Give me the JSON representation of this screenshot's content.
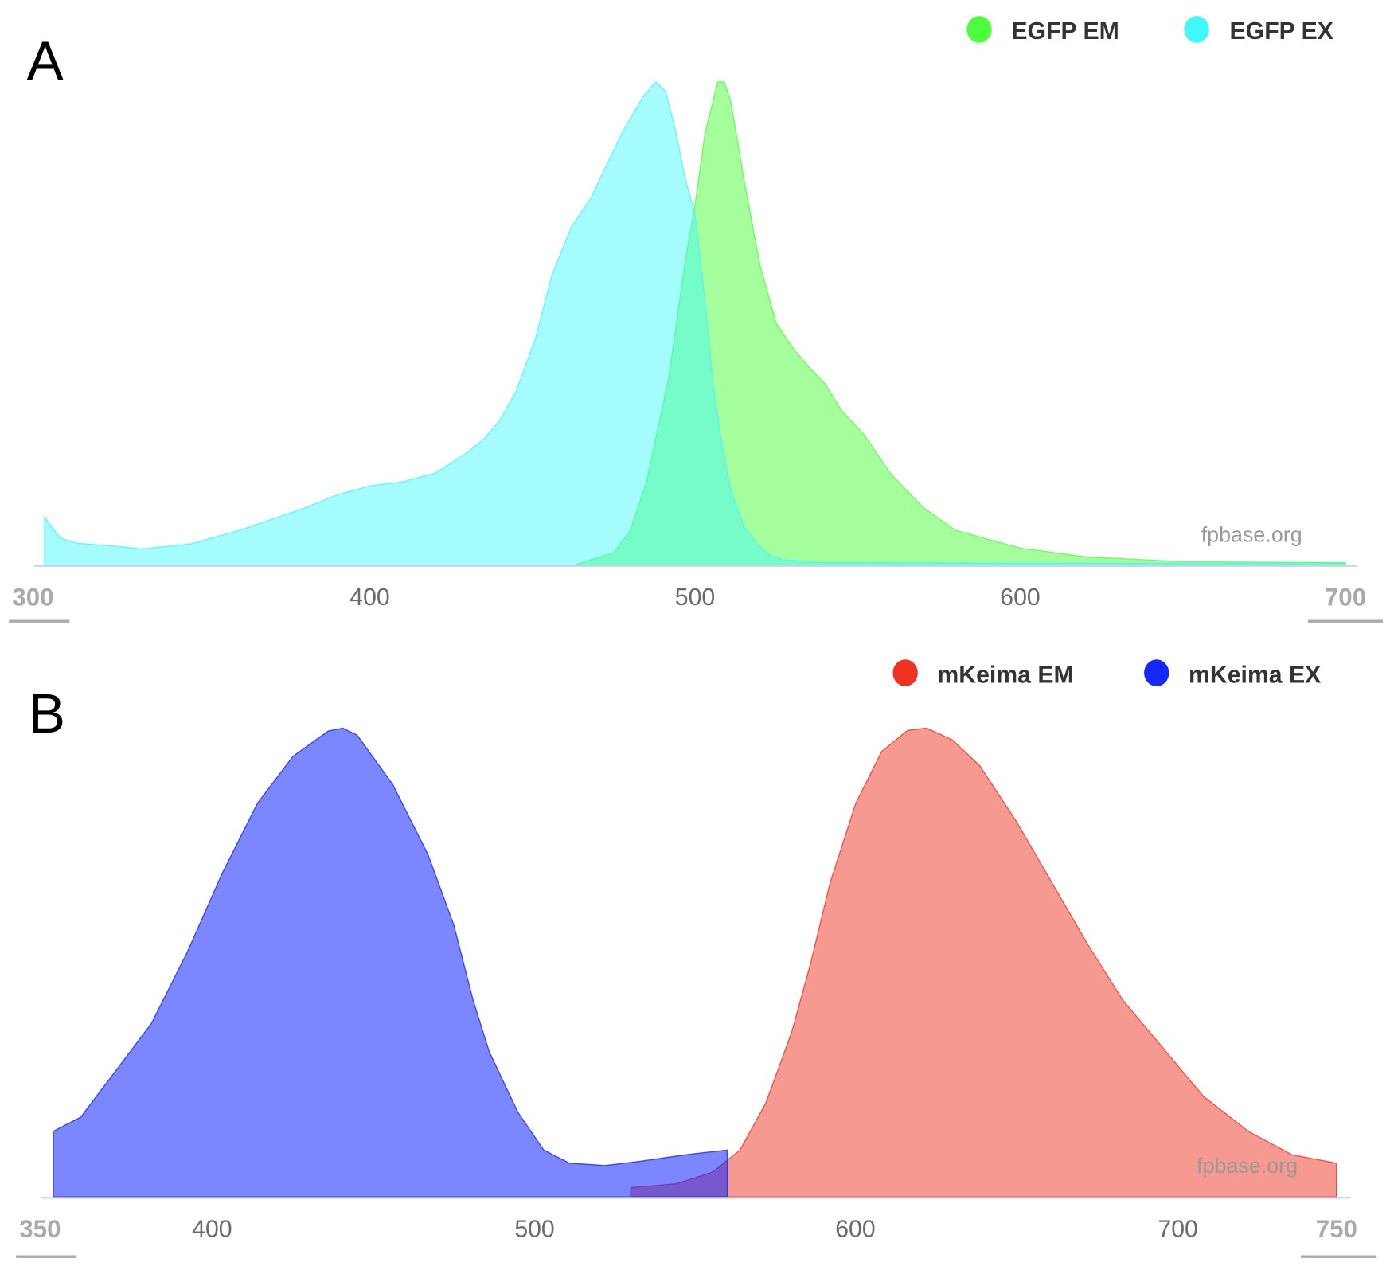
{
  "chart_data": [
    {
      "type": "area",
      "panel_label": "A",
      "xlabel": "",
      "ylabel": "",
      "xlim": [
        300,
        700
      ],
      "ylim": [
        0,
        1
      ],
      "x_ticks": [
        "300",
        "400",
        "500",
        "600",
        "700"
      ],
      "legend_placement": "top-right",
      "watermark": "fpbase.org",
      "series": [
        {
          "name": "EGFP EM",
          "color": "#4cff3a",
          "points": [
            [
              463,
              0
            ],
            [
              475,
              0.026
            ],
            [
              480,
              0.07
            ],
            [
              485,
              0.17
            ],
            [
              492,
              0.39
            ],
            [
              497,
              0.63
            ],
            [
              500,
              0.745
            ],
            [
              503,
              0.89
            ],
            [
              507,
              1.0
            ],
            [
              509,
              1.0
            ],
            [
              511,
              0.96
            ],
            [
              515,
              0.8
            ],
            [
              520,
              0.62
            ],
            [
              525,
              0.5
            ],
            [
              530,
              0.45
            ],
            [
              535,
              0.41
            ],
            [
              540,
              0.375
            ],
            [
              545,
              0.32
            ],
            [
              552,
              0.27
            ],
            [
              560,
              0.19
            ],
            [
              570,
              0.12
            ],
            [
              580,
              0.072
            ],
            [
              600,
              0.035
            ],
            [
              620,
              0.017
            ],
            [
              650,
              0.007
            ],
            [
              700,
              0.005
            ]
          ]
        },
        {
          "name": "EGFP EX",
          "color": "#40f8f8",
          "points": [
            [
              300,
              0.1
            ],
            [
              302,
              0.08
            ],
            [
              305,
              0.055
            ],
            [
              310,
              0.045
            ],
            [
              320,
              0.04
            ],
            [
              330,
              0.033
            ],
            [
              345,
              0.044
            ],
            [
              360,
              0.072
            ],
            [
              370,
              0.095
            ],
            [
              380,
              0.118
            ],
            [
              390,
              0.145
            ],
            [
              400,
              0.164
            ],
            [
              410,
              0.172
            ],
            [
              420,
              0.19
            ],
            [
              429,
              0.228
            ],
            [
              435,
              0.26
            ],
            [
              440,
              0.3
            ],
            [
              445,
              0.36
            ],
            [
              451,
              0.47
            ],
            [
              456,
              0.6
            ],
            [
              462,
              0.7
            ],
            [
              468,
              0.76
            ],
            [
              473,
              0.83
            ],
            [
              478,
              0.9
            ],
            [
              484,
              0.97
            ],
            [
              488,
              1.0
            ],
            [
              491,
              0.98
            ],
            [
              494,
              0.9
            ],
            [
              497,
              0.8
            ],
            [
              500,
              0.727
            ],
            [
              503,
              0.55
            ],
            [
              505.5,
              0.376
            ],
            [
              508,
              0.26
            ],
            [
              511,
              0.155
            ],
            [
              515,
              0.08
            ],
            [
              519,
              0.044
            ],
            [
              523,
              0.02
            ],
            [
              527,
              0.011
            ],
            [
              540,
              0.005
            ],
            [
              600,
              0.004
            ],
            [
              700,
              0.003
            ]
          ]
        }
      ]
    },
    {
      "type": "area",
      "panel_label": "B",
      "xlabel": "",
      "ylabel": "",
      "xlim": [
        350,
        750
      ],
      "ylim": [
        0,
        1
      ],
      "x_ticks": [
        "350",
        "400",
        "500",
        "600",
        "700",
        "750"
      ],
      "legend_placement": "top-right",
      "watermark": "fpbase.org",
      "series": [
        {
          "name": "mKeima EM",
          "color": "#ee3322",
          "points": [
            [
              530,
              0.02
            ],
            [
              544,
              0.028
            ],
            [
              555.5,
              0.053
            ],
            [
              564,
              0.1
            ],
            [
              572,
              0.2
            ],
            [
              580,
              0.35
            ],
            [
              586,
              0.5
            ],
            [
              592,
              0.67
            ],
            [
              600,
              0.84
            ],
            [
              608,
              0.95
            ],
            [
              616,
              0.995
            ],
            [
              622,
              1.0
            ],
            [
              630,
              0.975
            ],
            [
              638.5,
              0.92
            ],
            [
              650,
              0.8
            ],
            [
              661,
              0.67
            ],
            [
              672,
              0.54
            ],
            [
              683,
              0.42
            ],
            [
              694,
              0.33
            ],
            [
              708,
              0.215
            ],
            [
              722,
              0.14
            ],
            [
              735.6,
              0.09
            ],
            [
              749.4,
              0.072
            ]
          ]
        },
        {
          "name": "mKeima EX",
          "color": "#1428ff",
          "points": [
            [
              350.5,
              0.14
            ],
            [
              359,
              0.17
            ],
            [
              370,
              0.27
            ],
            [
              381,
              0.37
            ],
            [
              392,
              0.52
            ],
            [
              403,
              0.69
            ],
            [
              414,
              0.84
            ],
            [
              425,
              0.94
            ],
            [
              436,
              0.994
            ],
            [
              440.5,
              1.0
            ],
            [
              445,
              0.985
            ],
            [
              456,
              0.88
            ],
            [
              467,
              0.73
            ],
            [
              475,
              0.58
            ],
            [
              481,
              0.42
            ],
            [
              486,
              0.31
            ],
            [
              495,
              0.18
            ],
            [
              503,
              0.1
            ],
            [
              511,
              0.072
            ],
            [
              522,
              0.067
            ],
            [
              533,
              0.076
            ],
            [
              547,
              0.09
            ],
            [
              560,
              0.1
            ]
          ]
        }
      ]
    }
  ]
}
